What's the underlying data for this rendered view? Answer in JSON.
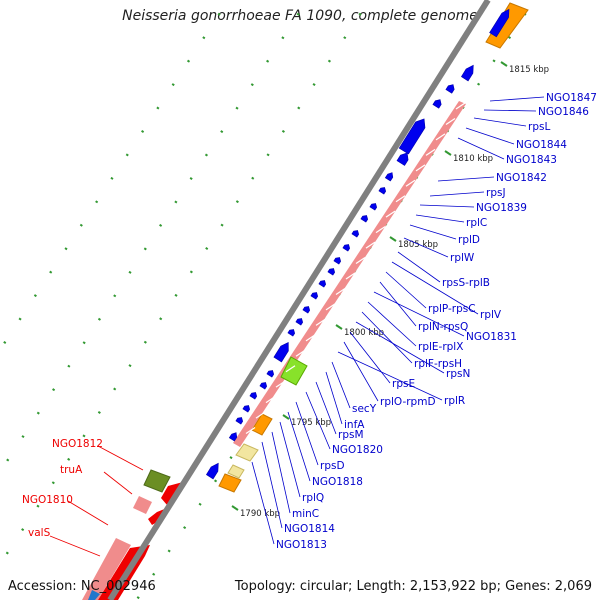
{
  "title": "Neisseria gonorrhoeae FA 1090, complete genome",
  "accession": "Accession: NC_002946",
  "topology": "Topology: circular; Length: 2,153,922 bp; Genes: 2,069",
  "colors": {
    "backbone": "#808080",
    "forward_gene": "#0000ee",
    "rna_pink": "#f08c8c",
    "label_blue": "#0000cc",
    "label_red": "#ee0000",
    "orange": "#ff9900",
    "green": "#66cc00",
    "olive": "#6b8e23",
    "tick_green": "#339933"
  },
  "kbp_labels": [
    "1815 kbp",
    "1810 kbp",
    "1805 kbp",
    "1800 kbp",
    "1795 kbp",
    "1790 kbp"
  ],
  "blue_labels": [
    "NGO1847",
    "NGO1846",
    "rpsL",
    "NGO1844",
    "NGO1843",
    "NGO1842",
    "rpsJ",
    "NGO1839",
    "rplC",
    "rplD",
    "rplW",
    "rpsS-rplB",
    "rplV",
    "rplP-rpsC",
    "rplN-rpsQ",
    "NGO1831",
    "rplE-rplX",
    "rplF-rpsH",
    "rpsN",
    "rpsE",
    "rplO-rpmD",
    "rplR",
    "secY",
    "infA",
    "rpsM",
    "NGO1820",
    "rpsD",
    "NGO1818",
    "rplQ",
    "minC",
    "NGO1814",
    "NGO1813"
  ],
  "red_labels": [
    "NGO1812",
    "truA",
    "NGO1810",
    "valS"
  ]
}
